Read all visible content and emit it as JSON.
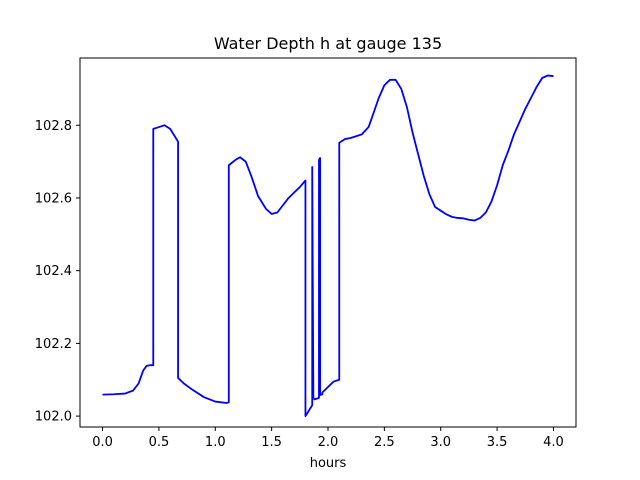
{
  "chart_data": {
    "type": "line",
    "title": "Water Depth h at gauge 135",
    "xlabel": "hours",
    "ylabel": "",
    "xlim": [
      -0.2,
      4.2
    ],
    "ylim": [
      101.97,
      102.985
    ],
    "xticks": [
      0.0,
      0.5,
      1.0,
      1.5,
      2.0,
      2.5,
      3.0,
      3.5,
      4.0
    ],
    "xtick_labels": [
      "0.0",
      "0.5",
      "1.0",
      "1.5",
      "2.0",
      "2.5",
      "3.0",
      "3.5",
      "4.0"
    ],
    "yticks": [
      102.0,
      102.2,
      102.4,
      102.6,
      102.8
    ],
    "ytick_labels": [
      "102.0",
      "102.2",
      "102.4",
      "102.6",
      "102.8"
    ],
    "grid": false,
    "series": [
      {
        "color": "#0000ff",
        "x": [
          0.0,
          0.1,
          0.2,
          0.27,
          0.32,
          0.36,
          0.39,
          0.42,
          0.45,
          0.45,
          0.5,
          0.55,
          0.6,
          0.67,
          0.67,
          0.72,
          0.8,
          0.9,
          1.0,
          1.1,
          1.12,
          1.12,
          1.18,
          1.22,
          1.27,
          1.32,
          1.38,
          1.45,
          1.5,
          1.55,
          1.6,
          1.65,
          1.7,
          1.75,
          1.8,
          1.8,
          1.85,
          1.86,
          1.86,
          1.87,
          1.88,
          1.9,
          1.92,
          1.92,
          1.93,
          1.93,
          1.95,
          1.95,
          2.0,
          2.05,
          2.1,
          2.1,
          2.15,
          2.2,
          2.3,
          2.36,
          2.4,
          2.45,
          2.5,
          2.55,
          2.6,
          2.65,
          2.7,
          2.75,
          2.8,
          2.85,
          2.9,
          2.95,
          3.0,
          3.05,
          3.1,
          3.15,
          3.2,
          3.25,
          3.3,
          3.35,
          3.4,
          3.45,
          3.5,
          3.55,
          3.6,
          3.65,
          3.7,
          3.75,
          3.8,
          3.85,
          3.9,
          3.95,
          4.0
        ],
        "y": [
          102.059,
          102.06,
          102.062,
          102.07,
          102.09,
          102.125,
          102.138,
          102.14,
          102.14,
          102.79,
          102.795,
          102.8,
          102.79,
          102.755,
          102.105,
          102.09,
          102.072,
          102.052,
          102.04,
          102.036,
          102.038,
          102.69,
          102.705,
          102.712,
          102.7,
          102.66,
          102.605,
          102.57,
          102.556,
          102.56,
          102.58,
          102.6,
          102.615,
          102.63,
          102.648,
          102.0,
          102.025,
          102.03,
          102.685,
          102.05,
          102.046,
          102.048,
          102.05,
          102.705,
          102.71,
          102.058,
          102.06,
          102.065,
          102.08,
          102.095,
          102.1,
          102.752,
          102.762,
          102.765,
          102.775,
          102.795,
          102.83,
          102.875,
          102.91,
          102.925,
          102.925,
          102.9,
          102.85,
          102.78,
          102.72,
          102.66,
          102.61,
          102.575,
          102.565,
          102.555,
          102.548,
          102.545,
          102.544,
          102.54,
          102.538,
          102.545,
          102.56,
          102.59,
          102.635,
          102.69,
          102.73,
          102.775,
          102.81,
          102.845,
          102.875,
          102.905,
          102.93,
          102.937,
          102.935
        ]
      }
    ]
  }
}
